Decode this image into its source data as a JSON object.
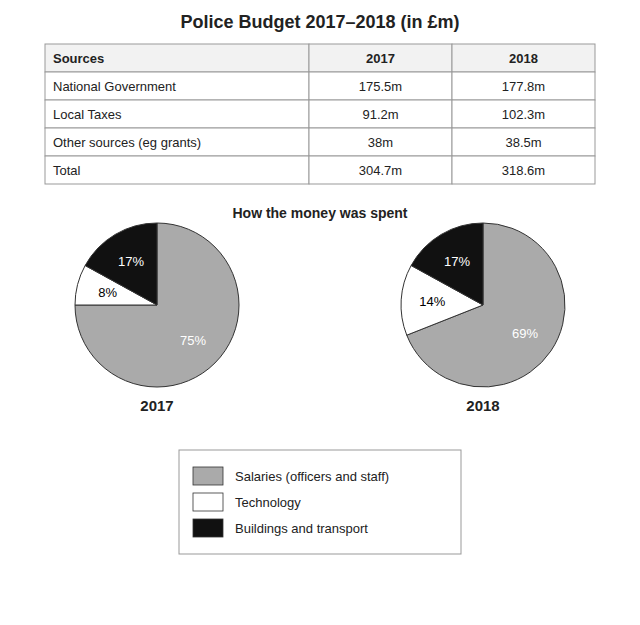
{
  "chart_data": [
    {
      "type": "table",
      "title": "Police Budget 2017–2018 (in £m)",
      "headers": [
        "Sources",
        "2017",
        "2018"
      ],
      "rows": [
        [
          "National Government",
          "175.5m",
          "177.8m"
        ],
        [
          "Local Taxes",
          "91.2m",
          "102.3m"
        ],
        [
          "Other sources (eg grants)",
          "38m",
          "38.5m"
        ],
        [
          "Total",
          "304.7m",
          "318.6m"
        ]
      ]
    },
    {
      "type": "pie",
      "subtitle": "How the money was spent",
      "title": "2017",
      "categories": [
        "Salaries (officers and staff)",
        "Technology",
        "Buildings and transport"
      ],
      "values": [
        75,
        8,
        17
      ],
      "value_labels": [
        "75%",
        "8%",
        "17%"
      ],
      "colors": [
        "#aaaaaa",
        "#ffffff",
        "#111111"
      ],
      "data_labels": true,
      "legend": "bottom"
    },
    {
      "type": "pie",
      "title": "2018",
      "categories": [
        "Salaries (officers and staff)",
        "Technology",
        "Buildings and transport"
      ],
      "values": [
        69,
        14,
        17
      ],
      "value_labels": [
        "69%",
        "14%",
        "17%"
      ],
      "colors": [
        "#aaaaaa",
        "#ffffff",
        "#111111"
      ],
      "data_labels": true
    }
  ]
}
